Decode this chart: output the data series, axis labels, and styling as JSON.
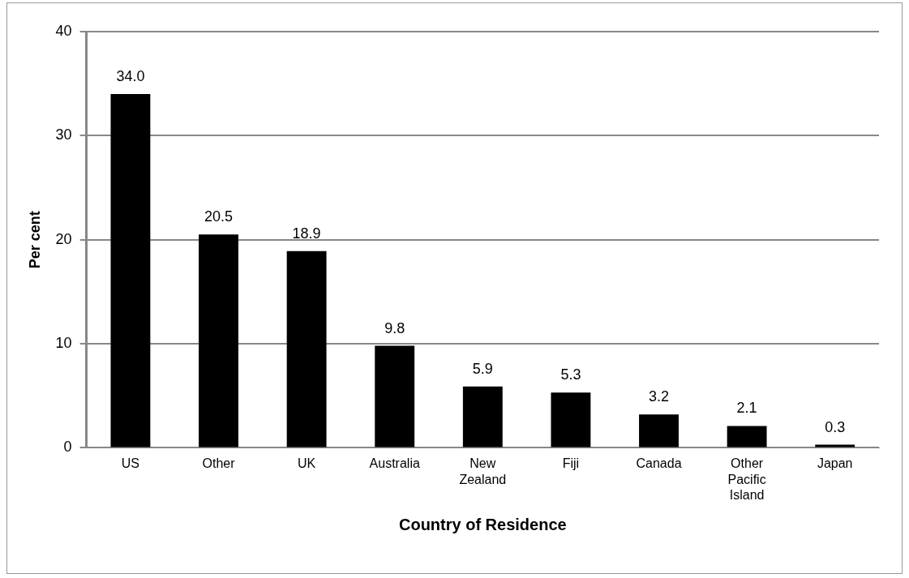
{
  "chart_data": {
    "type": "bar",
    "xlabel": "Country of Residence",
    "ylabel": "Per cent",
    "categories": [
      "US",
      "Other",
      "UK",
      "Australia",
      "New Zealand",
      "Fiji",
      "Canada",
      "Other Pacific Island",
      "Japan"
    ],
    "values": [
      34.0,
      20.5,
      18.9,
      9.8,
      5.9,
      5.3,
      3.2,
      2.1,
      0.3
    ],
    "value_labels": [
      "34.0",
      "20.5",
      "18.9",
      "9.8",
      "5.9",
      "5.3",
      "3.2",
      "2.1",
      "0.3"
    ],
    "color": "#000000",
    "ylim": [
      0,
      40
    ],
    "yticks": [
      0,
      10,
      20,
      30,
      40
    ],
    "grid": "y",
    "legend": false
  }
}
